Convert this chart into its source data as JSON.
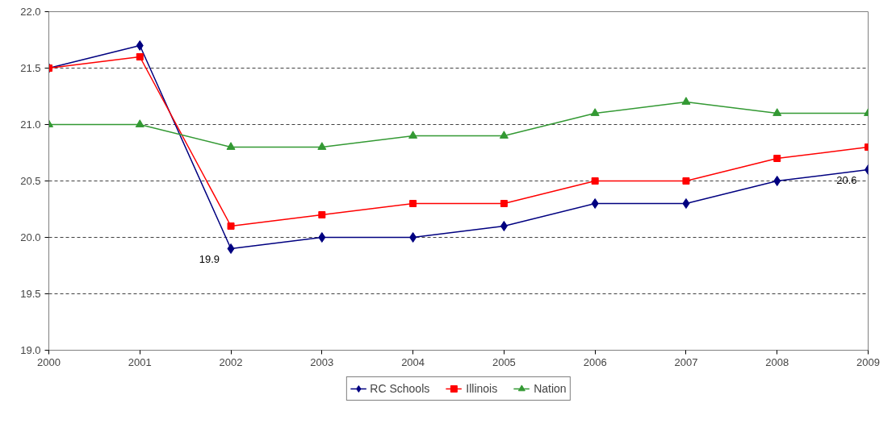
{
  "chart_data": {
    "type": "line",
    "x": [
      2000,
      2001,
      2002,
      2003,
      2004,
      2005,
      2006,
      2007,
      2008,
      2009
    ],
    "xlim": [
      2000,
      2009
    ],
    "xticks": [
      2000,
      2001,
      2002,
      2003,
      2004,
      2005,
      2006,
      2007,
      2008,
      2009
    ],
    "ylim": [
      19.0,
      22.0
    ],
    "yticks": [
      {
        "value": 19.0,
        "label": "19.0"
      },
      {
        "value": 19.5,
        "label": "19.5"
      },
      {
        "value": 20.0,
        "label": "20.0"
      },
      {
        "value": 20.5,
        "label": "20.5"
      },
      {
        "value": 21.0,
        "label": "21.0"
      },
      {
        "value": 21.5,
        "label": "21.5"
      },
      {
        "value": 22.0,
        "label": "22.0"
      }
    ],
    "grid": "y",
    "legend": "bottom",
    "line_style": "solid",
    "series": [
      {
        "name": "RC Schools",
        "color": "#000080",
        "marker": "diamond",
        "values": [
          21.5,
          21.7,
          19.9,
          20.0,
          20.0,
          20.1,
          20.3,
          20.3,
          20.5,
          20.6
        ],
        "value_labels": [
          null,
          null,
          "19.9",
          null,
          null,
          null,
          null,
          null,
          null,
          "20.6"
        ]
      },
      {
        "name": "Illinois",
        "color": "#ff0000",
        "marker": "square",
        "values": [
          21.5,
          21.6,
          20.1,
          20.2,
          20.3,
          20.3,
          20.5,
          20.5,
          20.7,
          20.8
        ]
      },
      {
        "name": "Nation",
        "color": "#339933",
        "marker": "triangle",
        "values": [
          21.0,
          21.0,
          20.8,
          20.8,
          20.9,
          20.9,
          21.1,
          21.2,
          21.1,
          21.1
        ]
      }
    ]
  }
}
